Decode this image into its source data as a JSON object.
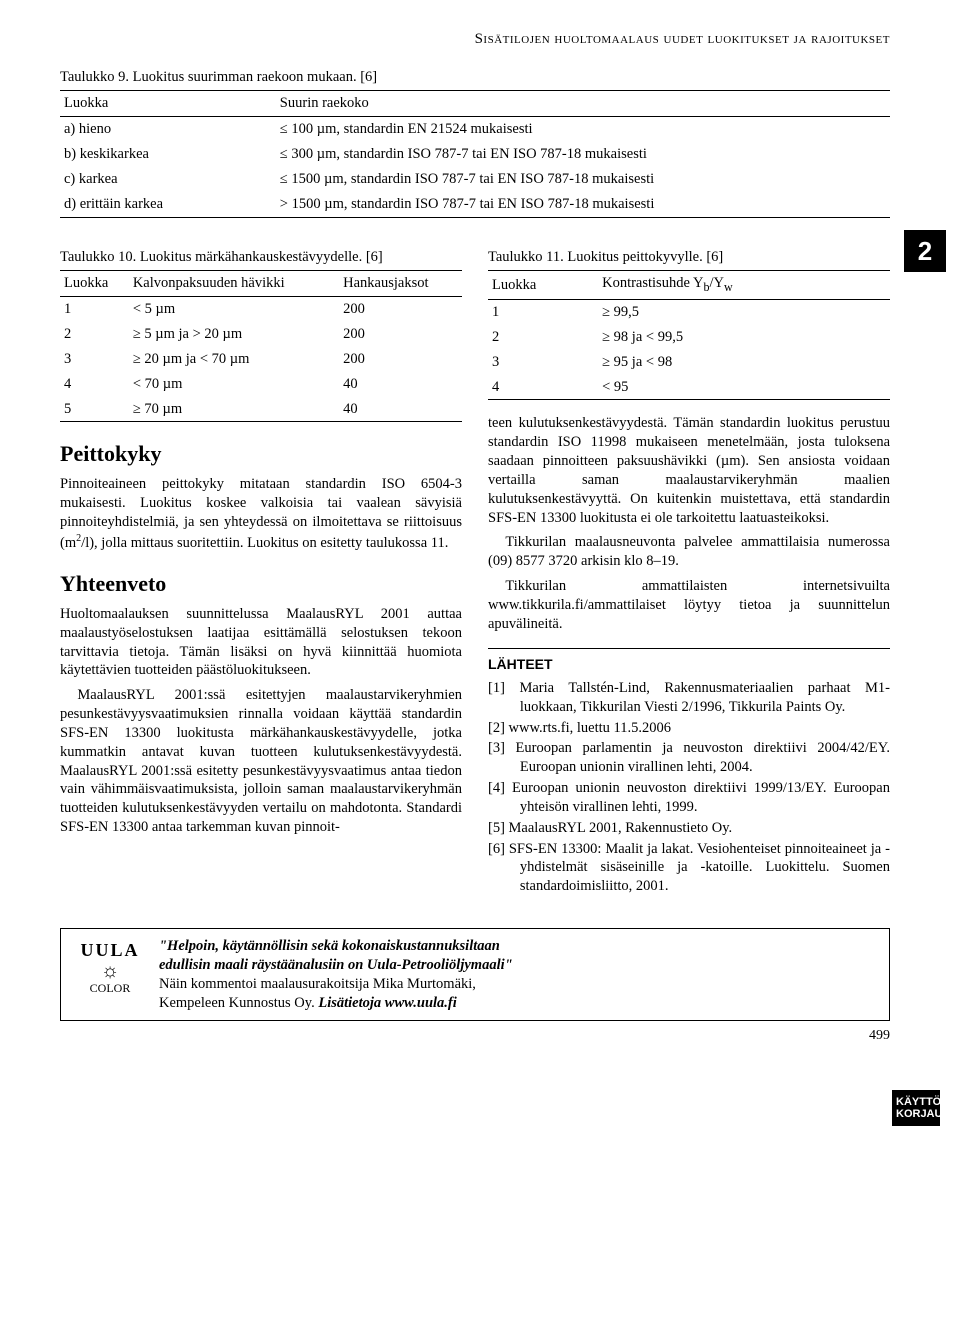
{
  "running_head": "Sisätilojen huoltomaalaus uudet luokitukset ja rajoitukset",
  "fatbox": "2",
  "table9": {
    "caption": "Taulukko 9. Luokitus suurimman raekoon mukaan. [6]",
    "head_a": "Luokka",
    "head_b": "Suurin raekoko",
    "rows": [
      {
        "a": "a) hieno",
        "b": "≤ 100 µm, standardin EN 21524 mukaisesti"
      },
      {
        "a": "b) keskikarkea",
        "b": "≤ 300 µm, standardin ISO 787-7 tai EN ISO 787-18 mukaisesti"
      },
      {
        "a": "c) karkea",
        "b": "≤ 1500 µm, standardin ISO 787-7 tai EN ISO 787-18 mukaisesti"
      },
      {
        "a": "d) erittäin karkea",
        "b": "> 1500 µm, standardin ISO 787-7 tai EN ISO 787-18 mukaisesti"
      }
    ]
  },
  "table10": {
    "caption": "Taulukko 10. Luokitus märkähankauskestävyydelle. [6]",
    "h1": "Luokka",
    "h2": "Kalvonpaksuuden hävikki",
    "h3": "Hankausjaksot",
    "rows": [
      {
        "c1": "1",
        "c2": "< 5 µm",
        "c3": "200"
      },
      {
        "c1": "2",
        "c2": "≥ 5 µm ja > 20 µm",
        "c3": "200"
      },
      {
        "c1": "3",
        "c2": "≥ 20 µm ja < 70 µm",
        "c3": "200"
      },
      {
        "c1": "4",
        "c2": "< 70 µm",
        "c3": "40"
      },
      {
        "c1": "5",
        "c2": "≥ 70 µm",
        "c3": "40"
      }
    ]
  },
  "table11": {
    "caption": "Taulukko 11. Luokitus peittokyvylle. [6]",
    "h1": "Luokka",
    "h2_html": "Kontrastisuhde Y<sub>b</sub>/Y<sub>w</sub>",
    "rows": [
      {
        "c1": "1",
        "c2": "≥ 99,5"
      },
      {
        "c1": "2",
        "c2": "≥ 98 ja < 99,5"
      },
      {
        "c1": "3",
        "c2": "≥ 95 ja < 98"
      },
      {
        "c1": "4",
        "c2": "< 95"
      }
    ]
  },
  "sections": {
    "peitto_h": "Peittokyky",
    "peitto_p_html": "Pinnoiteaineen peittokyky mitataan standardin ISO 6504-3 mukaisesti. Luokitus koskee valkoisia tai vaalean sävyisiä pinnoiteyhdistelmiä, ja sen yhteydessä on ilmoitettava se riittoisuus (m<sup>2</sup>/l), jolla mittaus suoritettiin. Luokitus on esitetty taulukossa 11.",
    "yht_h": "Yhteenveto",
    "yht_p1": "Huoltomaalauksen suunnittelussa MaalausRYL 2001 auttaa maalaustyöselostuksen laatijaa esittämällä selostuksen tekoon tarvittavia tietoja. Tämän lisäksi on hyvä kiinnittää huomiota käytettävien tuotteiden päästöluokitukseen.",
    "yht_p2_html": "MaalausRYL 2001:ssä esitettyjen maalaustarvikeryhmien pesunkestävyysvaatimuksien rinnalla voidaan käyttää standardin SFS-EN 13300 luokitusta märkähankauskestävyydelle, jotka kummatkin antavat kuvan tuotteen kulutuksenkestävyydestä. MaalausRYL 2001:ssä esitetty pesunkestävyysvaatimus antaa tiedon vain vähimmäisvaatimuksista, jolloin saman maalaustarvikeryhmän tuotteiden kulutuksenkestävyyden vertailu on mahdotonta. Standardi SFS-EN 13300 antaa tarkemman kuvan pinnoit-",
    "right_p1": "teen kulutuksenkestävyydestä. Tämän standardin luokitus perustuu standardin ISO 11998 mukaiseen menetelmään, josta tuloksena saadaan pinnoitteen paksuushävikki (µm). Sen ansiosta voidaan vertailla saman maalaustarvikeryhmän maalien kulutuksenkestävyyttä. On kuitenkin muistettava, että standardin SFS-EN 13300 luokitusta ei ole tarkoitettu laatuasteikoksi.",
    "right_p2": "Tikkurilan maalausneuvonta palvelee ammattilaisia numerossa (09) 8577 3720 arkisin klo 8–19.",
    "right_p3": "Tikkurilan ammattilaisten internetsivuilta www.tikkurila.fi/ammattilaiset löytyy tietoa ja suunnittelun apuvälineitä."
  },
  "lahteet": {
    "h": "LÄHTEET",
    "items": [
      "[1]  Maria Tallstén-Lind, Rakennusmateriaalien parhaat M1-luokkaan, Tikkurilan Viesti 2/1996, Tikkurila Paints Oy.",
      "[2]  www.rts.fi, luettu 11.5.2006",
      "[3]  Euroopan parlamentin ja neuvoston direktiivi 2004/42/EY. Euroopan unionin virallinen lehti, 2004.",
      "[4]  Euroopan unionin neuvoston direktiivi 1999/13/EY. Euroopan yhteisön virallinen lehti, 1999.",
      "[5]  MaalausRYL 2001, Rakennustieto Oy.",
      "[6]  SFS-EN 13300: Maalit ja lakat. Vesiohenteiset pinnoiteaineet ja -yhdistelmät sisäseinille ja -katoille. Luokittelu. Suomen standardoimisliitto, 2001."
    ]
  },
  "ad": {
    "l1": "\"Helpoin, käytännöllisin sekä kokonaiskustannuksiltaan",
    "l2": "edullisin maali räystäänalusiin on Uula-Petrooliöljymaali\"",
    "l3": "Näin kommentoi maalausurakoitsija Mika Murtomäki,",
    "l4_pre": "Kempeleen Kunnostus Oy. ",
    "l4_b": "Lisätietoja www.uula.fi",
    "logo_brand": "UULA",
    "logo_small": "COLOR"
  },
  "spine": {
    "l1": "KÄYTTÖ",
    "l2": "KORJAUS"
  },
  "page_num": "499"
}
